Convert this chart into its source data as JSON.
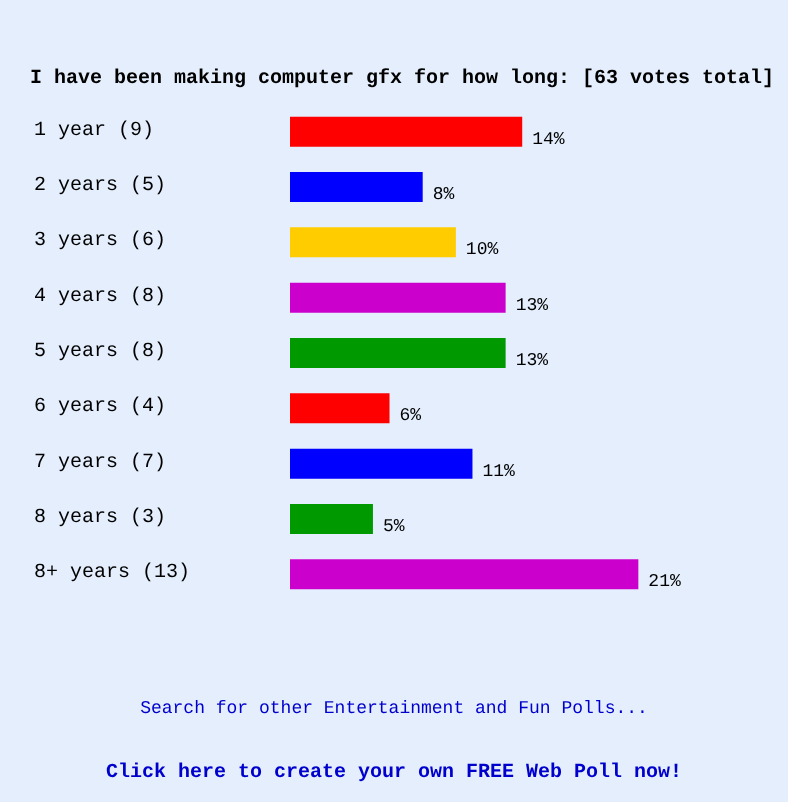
{
  "chart_data": {
    "type": "bar",
    "orientation": "horizontal",
    "title": "I have been making computer gfx for how long: [63 votes total]",
    "categories": [
      "1 year (9)",
      "2 years (5)",
      "3 years (6)",
      "4 years (8)",
      "5 years (8)",
      "6 years (4)",
      "7 years (7)",
      "8 years (3)",
      "8+ years (13)"
    ],
    "values": [
      14,
      8,
      10,
      13,
      13,
      6,
      11,
      5,
      21
    ],
    "colors": [
      "#ff0000",
      "#0000ff",
      "#ffcc00",
      "#cc00cc",
      "#009900",
      "#ff0000",
      "#0000ff",
      "#009900",
      "#cc00cc"
    ],
    "value_labels": [
      "14%",
      "8%",
      "10%",
      "13%",
      "13%",
      "6%",
      "11%",
      "5%",
      "21%"
    ],
    "annotations": [
      "Search for other Entertainment and Fun Polls...",
      "Click here to create your own FREE Web Poll now!"
    ]
  }
}
